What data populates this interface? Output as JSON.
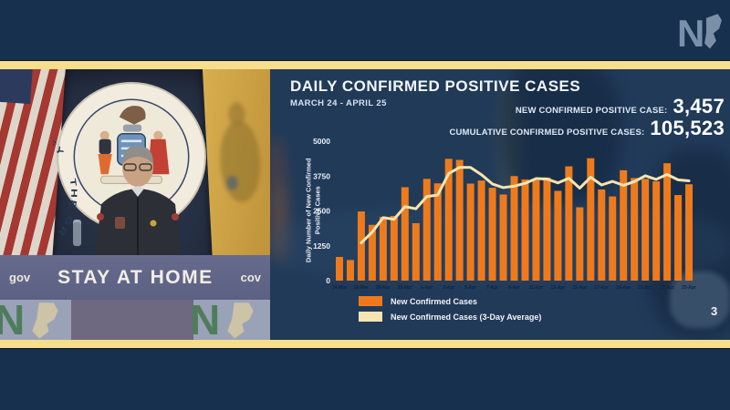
{
  "frame": {
    "station_logo": "NJ",
    "slide_number": "3"
  },
  "video": {
    "seal_text": "THE GREAT SEAL OF THE STATE OF NEW JERSEY",
    "podium_left_text": "gov",
    "podium_banner": "STAY AT HOME",
    "podium_right_text": "cov",
    "strip_logo_letter": "N"
  },
  "chart": {
    "title": "DAILY CONFIRMED POSITIVE CASES",
    "subtitle": "MARCH 24 - APRIL 25",
    "stats": [
      {
        "label": "NEW CONFIRMED POSITIVE CASE:",
        "value": "3,457"
      },
      {
        "label": "CUMULATIVE CONFIRMED POSITIVE CASES:",
        "value": "105,523"
      }
    ],
    "legend": [
      {
        "label": "New Confirmed Cases"
      },
      {
        "label": "New Confirmed Cases (3-Day Average)"
      }
    ]
  },
  "chart_data": {
    "type": "bar",
    "title": "DAILY CONFIRMED POSITIVE CASES",
    "subtitle": "MARCH 24 - APRIL 25",
    "xlabel": "",
    "ylabel": "Daily Number of New Confirmed Positive Cases",
    "ylim": [
      0,
      5000
    ],
    "yticks": [
      0,
      1250,
      2500,
      3750,
      5000
    ],
    "grid": false,
    "legend_position": "bottom-left",
    "categories": [
      "24-Mar",
      "25-Mar",
      "26-Mar",
      "27-Mar",
      "28-Mar",
      "29-Mar",
      "30-Mar",
      "31-Mar",
      "1-Apr",
      "2-Apr",
      "3-Apr",
      "4-Apr",
      "5-Apr",
      "6-Apr",
      "7-Apr",
      "8-Apr",
      "9-Apr",
      "10-Apr",
      "11-Apr",
      "12-Apr",
      "13-Apr",
      "14-Apr",
      "15-Apr",
      "16-Apr",
      "17-Apr",
      "18-Apr",
      "19-Apr",
      "20-Apr",
      "21-Apr",
      "22-Apr",
      "23-Apr",
      "24-Apr",
      "25-Apr"
    ],
    "series": [
      {
        "name": "New Confirmed Cases",
        "type": "bar",
        "color": "#ef7a1c",
        "values": [
          850,
          740,
          2480,
          2000,
          2290,
          2320,
          3350,
          2060,
          3650,
          3490,
          4370,
          4330,
          3480,
          3590,
          3330,
          3090,
          3750,
          3630,
          3600,
          3700,
          3220,
          4100,
          2630,
          4390,
          3270,
          3020,
          3960,
          3680,
          3650,
          3560,
          4210,
          3070,
          3457
        ]
      },
      {
        "name": "New Confirmed Cases (3-Day Average)",
        "type": "line",
        "color": "#f6e5b0",
        "values": [
          null,
          null,
          1357,
          1740,
          2257,
          2203,
          2653,
          2577,
          3020,
          3067,
          3837,
          4063,
          4060,
          3800,
          3467,
          3337,
          3390,
          3490,
          3660,
          3643,
          3507,
          3673,
          3317,
          3707,
          3430,
          3560,
          3417,
          3553,
          3763,
          3630,
          3807,
          3613,
          3579
        ]
      }
    ]
  },
  "colors": {
    "background_navy": "#16304e",
    "gold_band": "#f7de8d",
    "bar_orange": "#ef7a1c",
    "line_cream": "#f6e5b0"
  }
}
